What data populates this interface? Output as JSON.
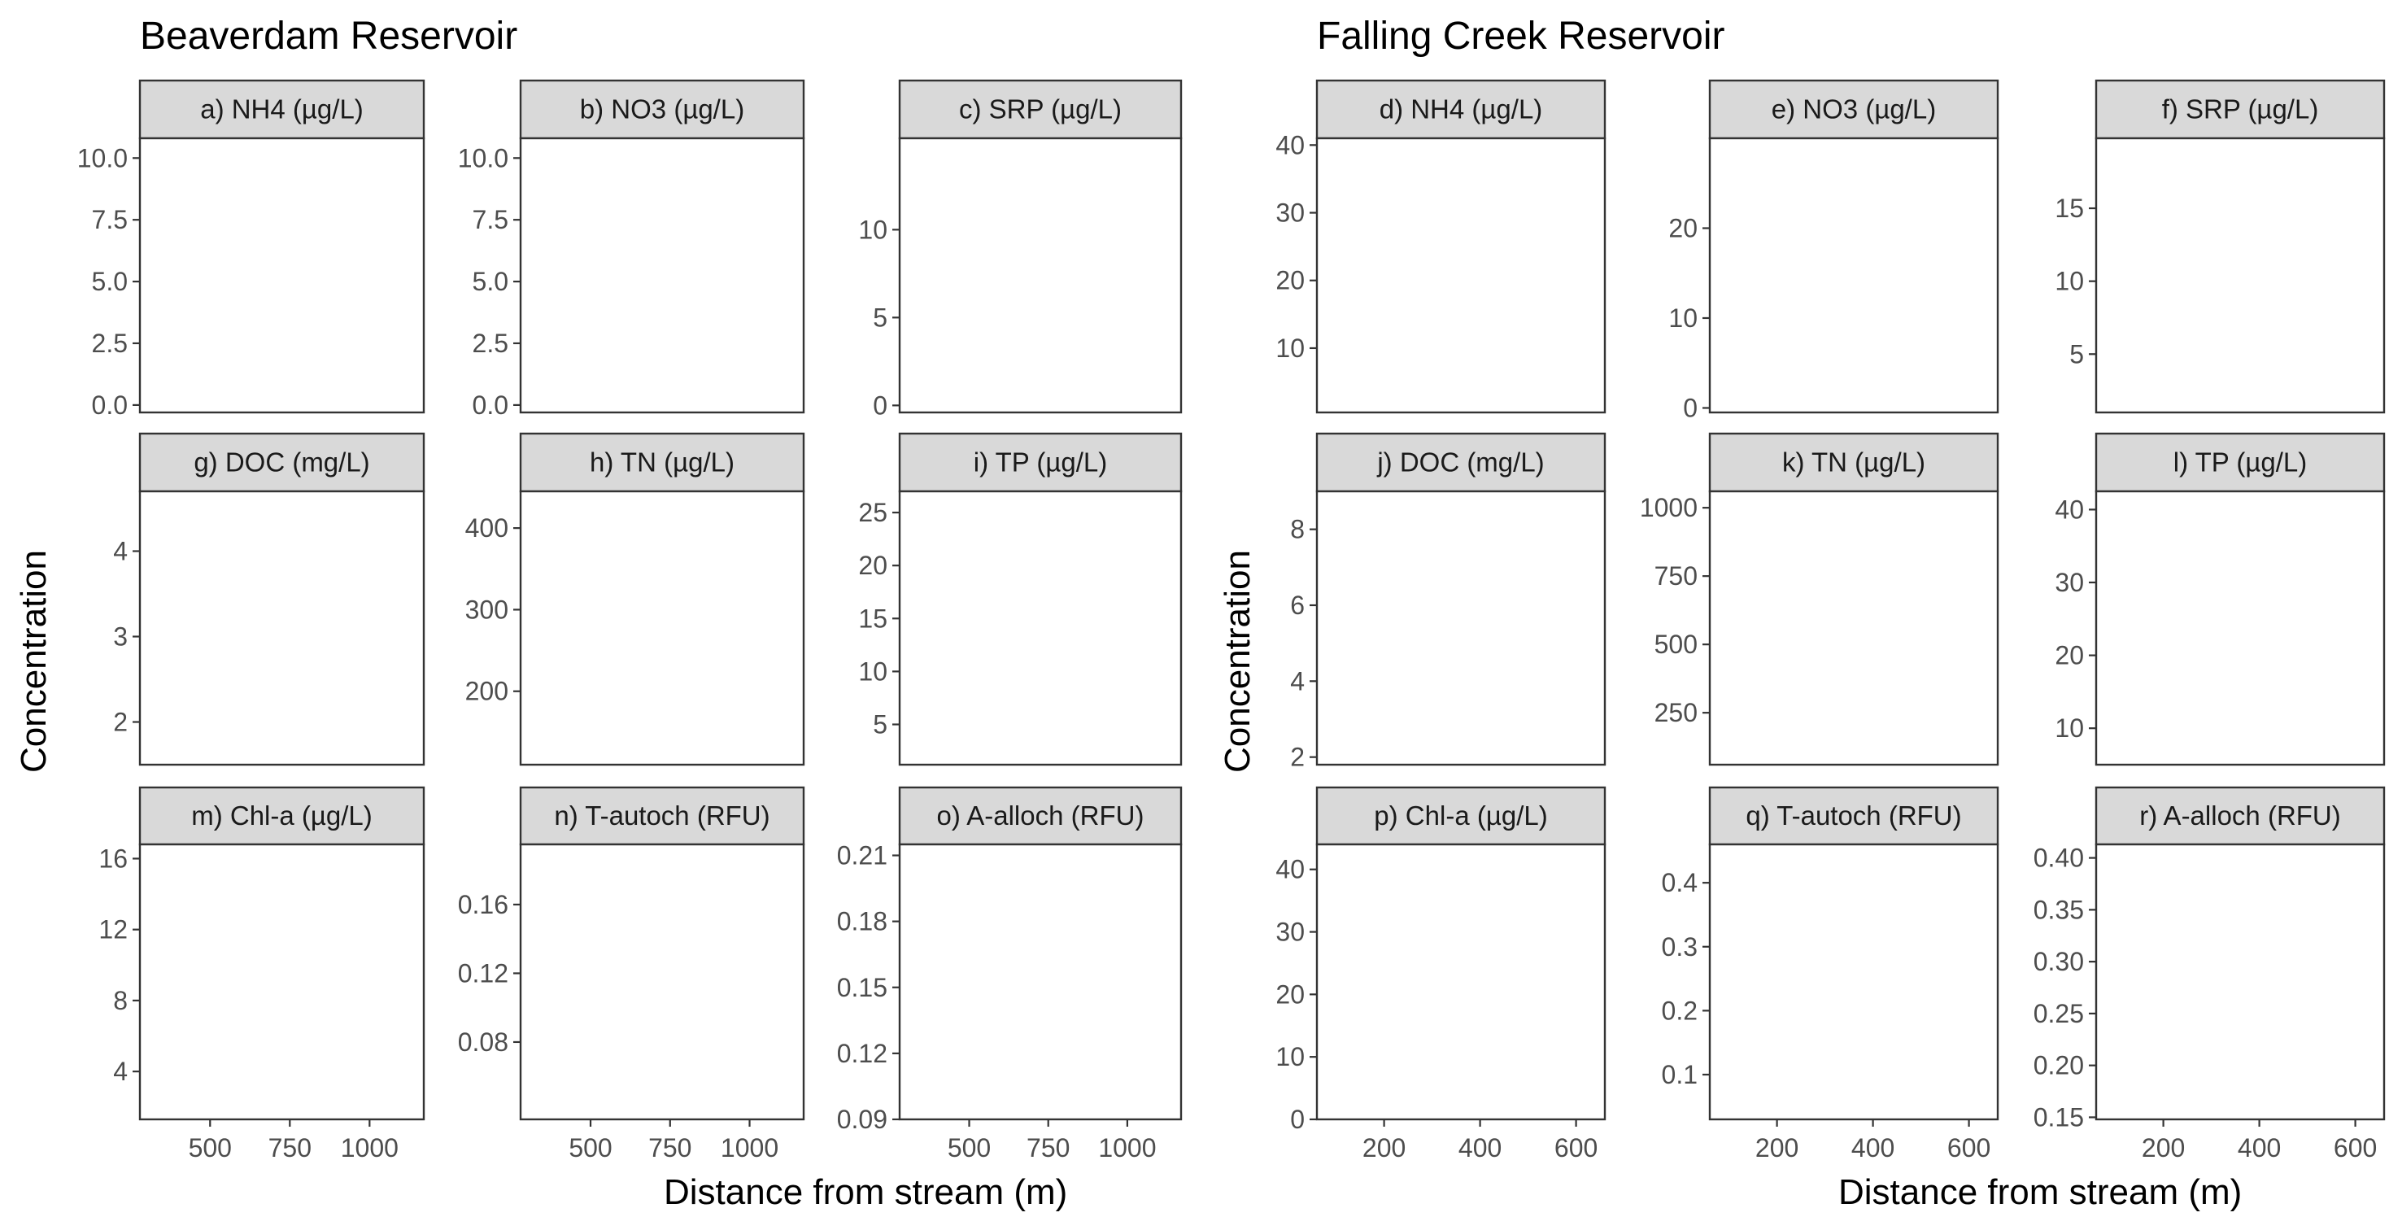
{
  "chart_data": [
    {
      "title": "Beaverdam Reservoir",
      "type": "scatter",
      "xlabel": "Distance from stream (m)",
      "ylabel": "Concentration",
      "x_ticks": [
        500,
        750,
        1000
      ],
      "xlim": [
        280,
        1170
      ],
      "grid": false,
      "panels": [
        {
          "label": "a) NH4 (µg/L)",
          "ylim": [
            -0.3,
            10.8
          ],
          "y_ticks": [
            0.0,
            2.5,
            5.0,
            7.5,
            10.0
          ],
          "y_tick_labels": [
            "0.0",
            "2.5",
            "5.0",
            "7.5",
            "10.0"
          ],
          "points": []
        },
        {
          "label": "b) NO3 (µg/L)",
          "ylim": [
            -0.3,
            10.8
          ],
          "y_ticks": [
            0.0,
            2.5,
            5.0,
            7.5,
            10.0
          ],
          "y_tick_labels": [
            "0.0",
            "2.5",
            "5.0",
            "7.5",
            "10.0"
          ],
          "points": []
        },
        {
          "label": "c) SRP (µg/L)",
          "ylim": [
            -0.4,
            15.2
          ],
          "y_ticks": [
            0,
            5,
            10
          ],
          "y_tick_labels": [
            "0",
            "5",
            "10"
          ],
          "points": []
        },
        {
          "label": "g) DOC (mg/L)",
          "ylim": [
            1.5,
            4.7
          ],
          "y_ticks": [
            2,
            3,
            4
          ],
          "y_tick_labels": [
            "2",
            "3",
            "4"
          ],
          "points": []
        },
        {
          "label": "h) TN (µg/L)",
          "ylim": [
            110,
            445
          ],
          "y_ticks": [
            200,
            300,
            400
          ],
          "y_tick_labels": [
            "200",
            "300",
            "400"
          ],
          "points": []
        },
        {
          "label": "i) TP (µg/L)",
          "ylim": [
            1.2,
            27.0
          ],
          "y_ticks": [
            5,
            10,
            15,
            20,
            25
          ],
          "y_tick_labels": [
            "5",
            "10",
            "15",
            "20",
            "25"
          ],
          "points": []
        },
        {
          "label": "m) Chl-a (µg/L)",
          "ylim": [
            1.3,
            16.8
          ],
          "y_ticks": [
            4,
            8,
            12,
            16
          ],
          "y_tick_labels": [
            "4",
            "8",
            "12",
            "16"
          ],
          "points": []
        },
        {
          "label": "n) T-autoch (RFU)",
          "ylim": [
            0.035,
            0.195
          ],
          "y_ticks": [
            0.08,
            0.12,
            0.16
          ],
          "y_tick_labels": [
            "0.08",
            "0.12",
            "0.16"
          ],
          "points": []
        },
        {
          "label": "o) A-alloch (RFU)",
          "ylim": [
            0.09,
            0.215
          ],
          "y_ticks": [
            0.09,
            0.12,
            0.15,
            0.18,
            0.21
          ],
          "y_tick_labels": [
            "0.09",
            "0.12",
            "0.15",
            "0.18",
            "0.21"
          ],
          "points": []
        }
      ]
    },
    {
      "title": "Falling Creek Reservoir",
      "type": "scatter",
      "xlabel": "Distance from stream (m)",
      "ylabel": "Concentration",
      "x_ticks": [
        200,
        400,
        600
      ],
      "xlim": [
        60,
        660
      ],
      "grid": false,
      "panels": [
        {
          "label": "d) NH4 (µg/L)",
          "ylim": [
            0.5,
            41.0
          ],
          "y_ticks": [
            10,
            20,
            30,
            40
          ],
          "y_tick_labels": [
            "10",
            "20",
            "30",
            "40"
          ],
          "points": []
        },
        {
          "label": "e) NO3 (µg/L)",
          "ylim": [
            -0.5,
            30.0
          ],
          "y_ticks": [
            0,
            10,
            20
          ],
          "y_tick_labels": [
            "0",
            "10",
            "20"
          ],
          "points": []
        },
        {
          "label": "f) SRP (µg/L)",
          "ylim": [
            1.0,
            19.8
          ],
          "y_ticks": [
            5,
            10,
            15
          ],
          "y_tick_labels": [
            "5",
            "10",
            "15"
          ],
          "points": []
        },
        {
          "label": "j) DOC (mg/L)",
          "ylim": [
            1.8,
            9.0
          ],
          "y_ticks": [
            2,
            4,
            6,
            8
          ],
          "y_tick_labels": [
            "2",
            "4",
            "6",
            "8"
          ],
          "points": []
        },
        {
          "label": "k) TN (µg/L)",
          "ylim": [
            60,
            1060
          ],
          "y_ticks": [
            250,
            500,
            750,
            1000
          ],
          "y_tick_labels": [
            "250",
            "500",
            "750",
            "1000"
          ],
          "points": []
        },
        {
          "label": "l) TP (µg/L)",
          "ylim": [
            5.0,
            42.5
          ],
          "y_ticks": [
            10,
            20,
            30,
            40
          ],
          "y_tick_labels": [
            "10",
            "20",
            "30",
            "40"
          ],
          "points": []
        },
        {
          "label": "p) Chl-a (µg/L)",
          "ylim": [
            0,
            44
          ],
          "y_ticks": [
            0,
            10,
            20,
            30,
            40
          ],
          "y_tick_labels": [
            "0",
            "10",
            "20",
            "30",
            "40"
          ],
          "points": []
        },
        {
          "label": "q) T-autoch (RFU)",
          "ylim": [
            0.03,
            0.46
          ],
          "y_ticks": [
            0.1,
            0.2,
            0.3,
            0.4
          ],
          "y_tick_labels": [
            "0.1",
            "0.2",
            "0.3",
            "0.4"
          ],
          "points": []
        },
        {
          "label": "r) A-alloch (RFU)",
          "ylim": [
            0.148,
            0.413
          ],
          "y_ticks": [
            0.15,
            0.2,
            0.25,
            0.3,
            0.35,
            0.4
          ],
          "y_tick_labels": [
            "0.15",
            "0.20",
            "0.25",
            "0.30",
            "0.35",
            "0.40"
          ],
          "points": []
        }
      ]
    }
  ]
}
